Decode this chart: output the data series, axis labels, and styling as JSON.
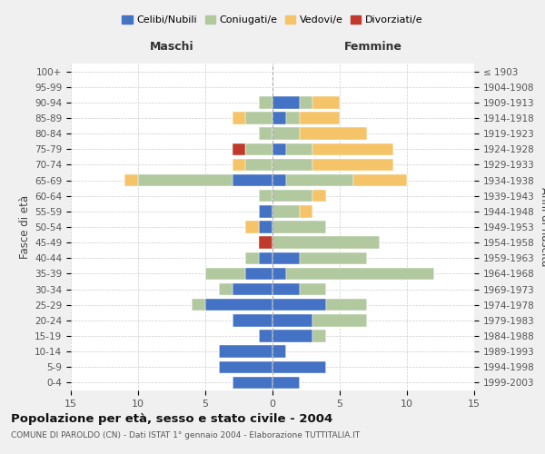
{
  "age_groups": [
    "0-4",
    "5-9",
    "10-14",
    "15-19",
    "20-24",
    "25-29",
    "30-34",
    "35-39",
    "40-44",
    "45-49",
    "50-54",
    "55-59",
    "60-64",
    "65-69",
    "70-74",
    "75-79",
    "80-84",
    "85-89",
    "90-94",
    "95-99",
    "100+"
  ],
  "birth_years": [
    "1999-2003",
    "1994-1998",
    "1989-1993",
    "1984-1988",
    "1979-1983",
    "1974-1978",
    "1969-1973",
    "1964-1968",
    "1959-1963",
    "1954-1958",
    "1949-1953",
    "1944-1948",
    "1939-1943",
    "1934-1938",
    "1929-1933",
    "1924-1928",
    "1919-1923",
    "1914-1918",
    "1909-1913",
    "1904-1908",
    "≤ 1903"
  ],
  "maschi": {
    "celibi": [
      3,
      4,
      4,
      1,
      3,
      5,
      3,
      2,
      1,
      0,
      1,
      1,
      0,
      3,
      0,
      0,
      0,
      0,
      0,
      0,
      0
    ],
    "coniugati": [
      0,
      0,
      0,
      0,
      0,
      1,
      1,
      3,
      1,
      0,
      0,
      0,
      1,
      7,
      2,
      2,
      1,
      2,
      1,
      0,
      0
    ],
    "vedovi": [
      0,
      0,
      0,
      0,
      0,
      0,
      0,
      0,
      0,
      0,
      1,
      0,
      0,
      1,
      1,
      0,
      0,
      1,
      0,
      0,
      0
    ],
    "divorziati": [
      0,
      0,
      0,
      0,
      0,
      0,
      0,
      0,
      0,
      1,
      0,
      0,
      0,
      0,
      0,
      1,
      0,
      0,
      0,
      0,
      0
    ]
  },
  "femmine": {
    "nubili": [
      2,
      4,
      1,
      3,
      3,
      4,
      2,
      1,
      2,
      0,
      0,
      0,
      0,
      1,
      0,
      1,
      0,
      1,
      2,
      0,
      0
    ],
    "coniugate": [
      0,
      0,
      0,
      1,
      4,
      3,
      2,
      11,
      5,
      8,
      4,
      2,
      3,
      5,
      3,
      2,
      2,
      1,
      1,
      0,
      0
    ],
    "vedove": [
      0,
      0,
      0,
      0,
      0,
      0,
      0,
      0,
      0,
      0,
      0,
      1,
      1,
      4,
      6,
      6,
      5,
      3,
      2,
      0,
      0
    ],
    "divorziate": [
      0,
      0,
      0,
      0,
      0,
      0,
      0,
      0,
      0,
      0,
      0,
      0,
      0,
      0,
      0,
      0,
      0,
      0,
      0,
      0,
      0
    ]
  },
  "colors": {
    "celibi_nubili": "#4472C4",
    "coniugati": "#B2C9A0",
    "vedovi": "#F5C469",
    "divorziati": "#C0392B"
  },
  "xlim": 15,
  "title": "Popolazione per età, sesso e stato civile - 2004",
  "subtitle": "COMUNE DI PAROLDO (CN) - Dati ISTAT 1° gennaio 2004 - Elaborazione TUTTITALIA.IT",
  "xlabel_left": "Maschi",
  "xlabel_right": "Femmine",
  "ylabel_left": "Fasce di età",
  "ylabel_right": "Anni di nascita",
  "bg_color": "#f0f0f0",
  "plot_bg_color": "#ffffff",
  "grid_color": "#cccccc"
}
